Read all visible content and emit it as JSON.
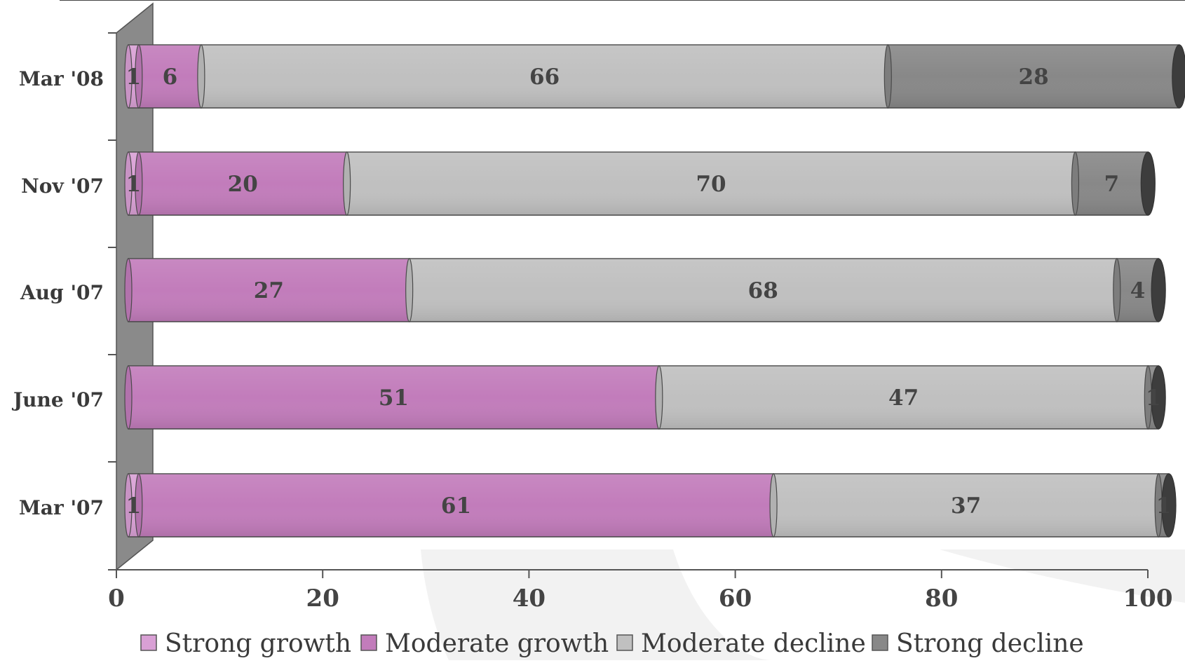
{
  "chart_data": {
    "type": "bar",
    "orientation": "horizontal",
    "stacked": true,
    "categories": [
      "Mar '07",
      "June '07",
      "Aug '07",
      "Nov '07",
      "Mar '08"
    ],
    "series": [
      {
        "name": "Strong growth",
        "color": "#d9a0d5",
        "values": [
          1,
          0,
          0,
          1,
          1
        ]
      },
      {
        "name": "Moderate growth",
        "color": "#c27cbb",
        "values": [
          61,
          51,
          27,
          20,
          6
        ]
      },
      {
        "name": "Moderate decline",
        "color": "#c0c0c0",
        "values": [
          37,
          47,
          68,
          70,
          66
        ]
      },
      {
        "name": "Strong decline",
        "color": "#888888",
        "values": [
          1,
          1,
          4,
          7,
          28
        ]
      }
    ],
    "data_labels": [
      [
        "1",
        "",
        "",
        "1",
        "1"
      ],
      [
        "61",
        "51",
        "27",
        "20",
        "6"
      ],
      [
        "37",
        "47",
        "68",
        "70",
        "66"
      ],
      [
        "1",
        "1",
        "4",
        "7",
        "28"
      ]
    ],
    "xlim": [
      0,
      100
    ],
    "xticks": [
      "0",
      "20",
      "40",
      "60",
      "80",
      "100"
    ],
    "grid": false,
    "legend": "bottom",
    "title": "",
    "xlabel": "",
    "ylabel": ""
  }
}
